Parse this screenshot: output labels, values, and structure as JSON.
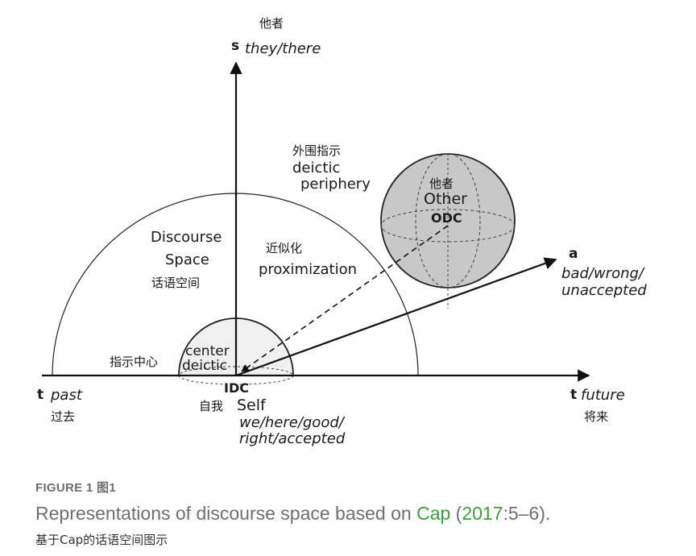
{
  "diagram": {
    "s_axis": {
      "letter": "s",
      "cn": "他者",
      "en": "they/there"
    },
    "t_axis_left": {
      "letter": "t",
      "en": "past",
      "cn": "过去"
    },
    "t_axis_right": {
      "letter": "t",
      "en": "future",
      "cn": "将来"
    },
    "a_axis": {
      "letter": "a",
      "en_line1": "bad/wrong/",
      "en_line2": "unaccepted"
    },
    "periphery": {
      "cn": "外围指示",
      "en_line1": "deictic",
      "en_line2": "periphery"
    },
    "discourse_space": {
      "en_line1": "Discourse",
      "en_line2": "Space",
      "cn": "话语空间"
    },
    "proximization": {
      "cn": "近似化",
      "en": "proximization"
    },
    "deictic_center": {
      "cn": "指示中心",
      "en_line1": "center",
      "en_line2": "deictic"
    },
    "idc": {
      "label": "IDC",
      "cn": "自我",
      "en": "Self",
      "sub_line1": "we/here/good/",
      "sub_line2": "right/accepted"
    },
    "odc": {
      "cn": "他者",
      "en": "Other",
      "label": "ODC"
    }
  },
  "caption": {
    "figure_label": "FIGURE 1  图1",
    "title_part1": "Representations of discourse space based on ",
    "title_link1": "Cap",
    "title_part2": " (",
    "title_link2": "2017",
    "title_part3": ":5–6).",
    "subtitle": "基于Cap的话语空间图示"
  },
  "colors": {
    "link": "#3f9c3f",
    "caption_gray": "#6f6f6f",
    "sphere_fill": "#c8c8c8",
    "inner_dome": "#f0f0f0"
  }
}
